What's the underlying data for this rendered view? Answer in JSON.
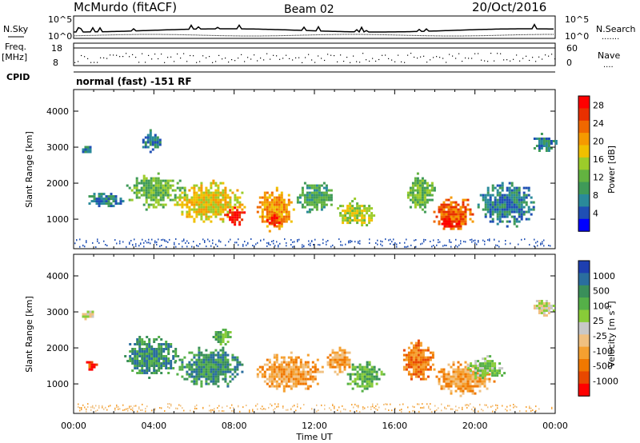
{
  "header": {
    "station": "McMurdo (fitACF)",
    "beam": "Beam 02",
    "date": "20/Oct/2016"
  },
  "status_panel": {
    "nsky_label": "N.Sky",
    "nsearch_label": "N.Search",
    "nsky_ticks": [
      "10^5",
      "10^0"
    ],
    "nsearch_ticks": [
      "10^5",
      "10^0"
    ],
    "freq_label": "Freq.",
    "freq_unit": "[MHz]",
    "freq_ticks": [
      "18",
      "8"
    ],
    "nave_label": "Nave",
    "nave_ticks": [
      "60",
      "0"
    ],
    "cpid_label": "CPID",
    "cpid_value": "normal (fast) -151 RF"
  },
  "chart_data": [
    {
      "type": "heatmap",
      "title": "",
      "xlabel": "Time UT",
      "ylabel": "Slant Range [km]",
      "x_ticks": [
        "00:00",
        "04:00",
        "08:00",
        "12:00",
        "16:00",
        "20:00",
        "00:00"
      ],
      "xlim_hours": [
        0,
        24
      ],
      "y_ticks": [
        1000,
        2000,
        3000,
        4000
      ],
      "ylim": [
        180,
        4600
      ],
      "colorbar": {
        "label": "Power [dB]",
        "ticks": [
          4,
          8,
          12,
          16,
          20,
          24,
          28
        ],
        "range": [
          0,
          30
        ],
        "colors": [
          "#0000ff",
          "#1f4fb4",
          "#2a8a9a",
          "#3f9a58",
          "#63b340",
          "#9ccc2a",
          "#f0c000",
          "#f59a00",
          "#f06800",
          "#e83000",
          "#ff0000"
        ]
      },
      "echo_regions": [
        {
          "t0": 0.5,
          "t1": 2.5,
          "r0": 1350,
          "r1": 1800,
          "level": 2
        },
        {
          "t0": 2.5,
          "t1": 5.5,
          "r0": 1300,
          "r1": 2300,
          "level": 4
        },
        {
          "t0": 5.0,
          "t1": 8.5,
          "r0": 900,
          "r1": 2100,
          "level": 6
        },
        {
          "t0": 7.5,
          "t1": 8.5,
          "r0": 850,
          "r1": 1350,
          "level": 10
        },
        {
          "t0": 9.0,
          "t1": 11.0,
          "r0": 700,
          "r1": 1900,
          "level": 7
        },
        {
          "t0": 9.6,
          "t1": 10.4,
          "r0": 800,
          "r1": 1200,
          "level": 9
        },
        {
          "t0": 11.0,
          "t1": 13.0,
          "r0": 1200,
          "r1": 2100,
          "level": 3
        },
        {
          "t0": 13.0,
          "t1": 15.0,
          "r0": 800,
          "r1": 1600,
          "level": 5
        },
        {
          "t0": 16.5,
          "t1": 18.0,
          "r0": 1200,
          "r1": 2300,
          "level": 4
        },
        {
          "t0": 17.8,
          "t1": 20.0,
          "r0": 700,
          "r1": 1700,
          "level": 8
        },
        {
          "t0": 18.2,
          "t1": 19.2,
          "r0": 750,
          "r1": 1100,
          "level": 10
        },
        {
          "t0": 20.0,
          "t1": 23.0,
          "r0": 800,
          "r1": 2100,
          "level": 2
        },
        {
          "t0": 0.3,
          "t1": 1.0,
          "r0": 2800,
          "r1": 3100,
          "level": 2
        },
        {
          "t0": 3.3,
          "t1": 4.4,
          "r0": 2900,
          "r1": 3500,
          "level": 2
        },
        {
          "t0": 22.8,
          "t1": 24.0,
          "r0": 2900,
          "r1": 3400,
          "level": 2
        }
      ]
    },
    {
      "type": "heatmap",
      "title": "",
      "xlabel": "Time UT",
      "ylabel": "Slant Range [km]",
      "x_ticks": [
        "00:00",
        "04:00",
        "08:00",
        "12:00",
        "16:00",
        "20:00",
        "00:00"
      ],
      "xlim_hours": [
        0,
        24
      ],
      "y_ticks": [
        1000,
        2000,
        3000,
        4000
      ],
      "ylim": [
        180,
        4600
      ],
      "colorbar": {
        "label": "Velocity [m s",
        "label_exponent": "-1",
        "label_tail": "]",
        "ticks": [
          "1000",
          "500",
          "100",
          "25",
          "-25",
          "-100",
          "-500",
          "-1000"
        ],
        "colors": [
          "#1e3fb0",
          "#2a6e9e",
          "#3a8f5a",
          "#55b048",
          "#88cc38",
          "#c8c8c8",
          "#f0c080",
          "#f5a030",
          "#f07800",
          "#e84800",
          "#ff0000"
        ]
      },
      "echo_regions": [
        {
          "t0": 0.5,
          "t1": 1.2,
          "r0": 1400,
          "r1": 1700,
          "level": 9
        },
        {
          "t0": 2.4,
          "t1": 5.2,
          "r0": 1200,
          "r1": 2400,
          "level": 2
        },
        {
          "t0": 5.0,
          "t1": 8.5,
          "r0": 900,
          "r1": 2100,
          "level": 2
        },
        {
          "t0": 6.8,
          "t1": 7.8,
          "r0": 2100,
          "r1": 2600,
          "level": 3
        },
        {
          "t0": 9.0,
          "t1": 12.5,
          "r0": 800,
          "r1": 1900,
          "level": 7
        },
        {
          "t0": 12.5,
          "t1": 13.8,
          "r0": 1300,
          "r1": 2100,
          "level": 7
        },
        {
          "t0": 13.5,
          "t1": 15.5,
          "r0": 800,
          "r1": 1700,
          "level": 3
        },
        {
          "t0": 16.3,
          "t1": 18.0,
          "r0": 1000,
          "r1": 2300,
          "level": 8
        },
        {
          "t0": 17.8,
          "t1": 21.0,
          "r0": 700,
          "r1": 1700,
          "level": 7
        },
        {
          "t0": 19.5,
          "t1": 21.5,
          "r0": 1100,
          "r1": 1800,
          "level": 4
        },
        {
          "t0": 0.3,
          "t1": 1.0,
          "r0": 2800,
          "r1": 3100,
          "level": 5
        },
        {
          "t0": 22.8,
          "t1": 24.0,
          "r0": 2900,
          "r1": 3400,
          "level": 5
        }
      ]
    }
  ]
}
